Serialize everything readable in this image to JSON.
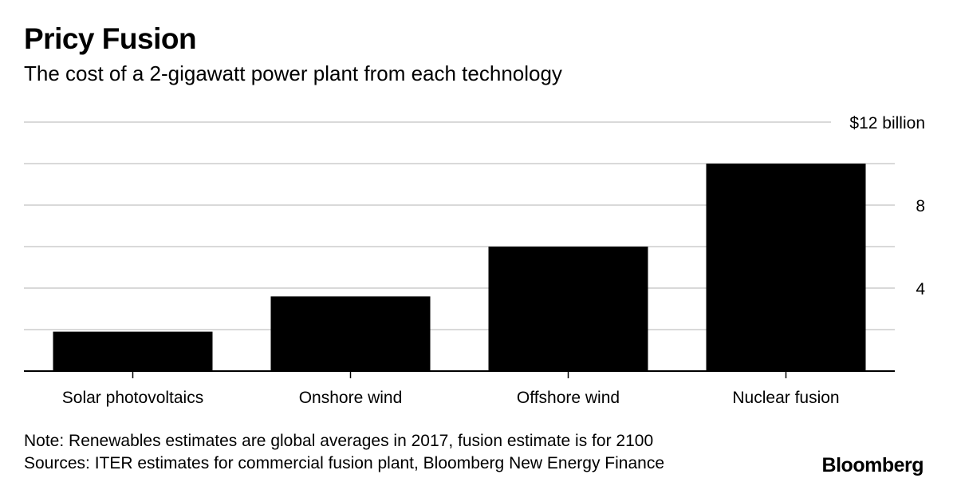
{
  "header": {
    "title": "Pricy Fusion",
    "subtitle": "The cost of a 2-gigawatt power plant from each technology"
  },
  "footer": {
    "note": "Note: Renewables estimates are global averages in 2017, fusion estimate is for 2100",
    "sources": "Sources: ITER estimates for commercial fusion plant, Bloomberg New Energy Finance",
    "brand": "Bloomberg"
  },
  "chart_data": {
    "type": "bar",
    "title": "Pricy Fusion",
    "subtitle": "The cost of a 2-gigawatt power plant from each technology",
    "categories": [
      "Solar photovoltaics",
      "Onshore wind",
      "Offshore wind",
      "Nuclear fusion"
    ],
    "values": [
      1.9,
      3.6,
      6.0,
      10.0
    ],
    "unit": "$ billion",
    "ylim": [
      0,
      12
    ],
    "yticks": [
      0,
      2,
      4,
      6,
      8,
      10,
      12
    ],
    "ytick_labels": [
      {
        "value": 4,
        "label": "4"
      },
      {
        "value": 8,
        "label": "8"
      },
      {
        "value": 12,
        "label": "$12 billion"
      }
    ],
    "grid": true,
    "bar_color": "#000000",
    "grid_color": "#d9d9d9"
  }
}
